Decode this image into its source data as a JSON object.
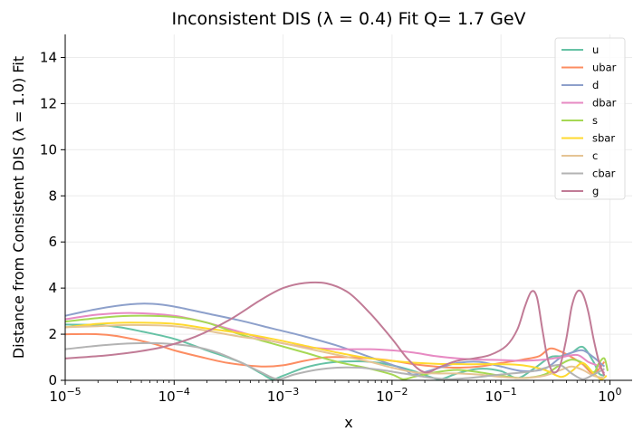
{
  "chart_data": {
    "type": "line",
    "title": "Inconsistent DIS (λ = 0.4) Fit Q= 1.7 GeV",
    "xlabel": "x",
    "ylabel": "Distance from Consistent DIS (λ = 1.0) Fit",
    "xscale": "log",
    "xlim": [
      1e-05,
      1.6
    ],
    "ylim": [
      0,
      15
    ],
    "grid": true,
    "legend_position": "top-right",
    "x_tick_values": [
      1e-05,
      0.0001,
      0.001,
      0.01,
      0.1,
      1
    ],
    "x_tick_labels": [
      {
        "base": "10",
        "exp": "−5"
      },
      {
        "base": "10",
        "exp": "−4"
      },
      {
        "base": "10",
        "exp": "−3"
      },
      {
        "base": "10",
        "exp": "−2"
      },
      {
        "base": "10",
        "exp": "−1"
      },
      {
        "base": "10",
        "exp": "0"
      }
    ],
    "y_tick_values": [
      0,
      2,
      4,
      6,
      8,
      10,
      12,
      14
    ],
    "y_tick_labels": [
      "0",
      "2",
      "4",
      "6",
      "8",
      "10",
      "12",
      "14"
    ],
    "series": [
      {
        "name": "u",
        "color": "#66c2a5",
        "points": [
          [
            -5,
            2.42
          ],
          [
            -4.7,
            2.4
          ],
          [
            -4.5,
            2.3
          ],
          [
            -4.3,
            2.12
          ],
          [
            -4,
            1.8
          ],
          [
            -3.7,
            1.3
          ],
          [
            -3.4,
            0.8
          ],
          [
            -3.2,
            0.3
          ],
          [
            -3.1,
            0.05
          ],
          [
            -3,
            0.2
          ],
          [
            -2.8,
            0.55
          ],
          [
            -2.6,
            0.75
          ],
          [
            -2.4,
            0.82
          ],
          [
            -2.2,
            0.8
          ],
          [
            -2,
            0.65
          ],
          [
            -1.8,
            0.4
          ],
          [
            -1.65,
            0.15
          ],
          [
            -1.55,
            0.05
          ],
          [
            -1.4,
            0.3
          ],
          [
            -1.2,
            0.5
          ],
          [
            -1,
            0.4
          ],
          [
            -0.85,
            0.1
          ],
          [
            -0.7,
            0.5
          ],
          [
            -0.55,
            1.0
          ],
          [
            -0.45,
            1.05
          ],
          [
            -0.35,
            1.2
          ],
          [
            -0.25,
            1.45
          ],
          [
            -0.15,
            0.8
          ],
          [
            -0.1,
            0.3
          ],
          [
            -0.05,
            0.2
          ]
        ]
      },
      {
        "name": "ubar",
        "color": "#fc8d62",
        "points": [
          [
            -5,
            2.0
          ],
          [
            -4.7,
            2.0
          ],
          [
            -4.5,
            1.9
          ],
          [
            -4.2,
            1.6
          ],
          [
            -4,
            1.3
          ],
          [
            -3.7,
            0.95
          ],
          [
            -3.5,
            0.75
          ],
          [
            -3.2,
            0.6
          ],
          [
            -3,
            0.65
          ],
          [
            -2.8,
            0.85
          ],
          [
            -2.6,
            1.0
          ],
          [
            -2.4,
            1.0
          ],
          [
            -2.2,
            0.95
          ],
          [
            -2,
            0.85
          ],
          [
            -1.8,
            0.7
          ],
          [
            -1.6,
            0.6
          ],
          [
            -1.4,
            0.55
          ],
          [
            -1.2,
            0.6
          ],
          [
            -1,
            0.75
          ],
          [
            -0.8,
            0.9
          ],
          [
            -0.65,
            1.05
          ],
          [
            -0.55,
            1.38
          ],
          [
            -0.45,
            1.25
          ],
          [
            -0.35,
            1.0
          ],
          [
            -0.25,
            0.7
          ],
          [
            -0.15,
            0.3
          ],
          [
            -0.05,
            0.8
          ]
        ]
      },
      {
        "name": "d",
        "color": "#8da0cb",
        "points": [
          [
            -5,
            2.8
          ],
          [
            -4.7,
            3.1
          ],
          [
            -4.4,
            3.3
          ],
          [
            -4.2,
            3.32
          ],
          [
            -4,
            3.2
          ],
          [
            -3.7,
            2.9
          ],
          [
            -3.4,
            2.6
          ],
          [
            -3.1,
            2.25
          ],
          [
            -2.8,
            1.9
          ],
          [
            -2.5,
            1.5
          ],
          [
            -2.2,
            1.0
          ],
          [
            -1.9,
            0.5
          ],
          [
            -1.8,
            0.25
          ],
          [
            -1.6,
            0.5
          ],
          [
            -1.4,
            0.75
          ],
          [
            -1.2,
            0.8
          ],
          [
            -1,
            0.6
          ],
          [
            -0.8,
            0.4
          ],
          [
            -0.6,
            0.5
          ],
          [
            -0.45,
            1.0
          ],
          [
            -0.35,
            1.2
          ],
          [
            -0.25,
            1.3
          ],
          [
            -0.15,
            1.0
          ],
          [
            -0.1,
            0.8
          ],
          [
            -0.05,
            0.6
          ]
        ]
      },
      {
        "name": "dbar",
        "color": "#e78ac3",
        "points": [
          [
            -5,
            2.65
          ],
          [
            -4.7,
            2.85
          ],
          [
            -4.4,
            2.92
          ],
          [
            -4,
            2.8
          ],
          [
            -3.7,
            2.5
          ],
          [
            -3.4,
            2.1
          ],
          [
            -3.1,
            1.7
          ],
          [
            -2.8,
            1.45
          ],
          [
            -2.5,
            1.35
          ],
          [
            -2.2,
            1.35
          ],
          [
            -2,
            1.3
          ],
          [
            -1.8,
            1.2
          ],
          [
            -1.6,
            1.05
          ],
          [
            -1.4,
            0.95
          ],
          [
            -1.2,
            0.9
          ],
          [
            -1,
            0.88
          ],
          [
            -0.8,
            0.85
          ],
          [
            -0.6,
            0.9
          ],
          [
            -0.45,
            1.0
          ],
          [
            -0.3,
            1.1
          ],
          [
            -0.2,
            0.8
          ],
          [
            -0.1,
            0.6
          ],
          [
            -0.05,
            0.3
          ]
        ]
      },
      {
        "name": "s",
        "color": "#a6d854",
        "points": [
          [
            -5,
            2.55
          ],
          [
            -4.7,
            2.7
          ],
          [
            -4.4,
            2.8
          ],
          [
            -4,
            2.75
          ],
          [
            -3.7,
            2.5
          ],
          [
            -3.4,
            2.0
          ],
          [
            -3.1,
            1.6
          ],
          [
            -2.8,
            1.2
          ],
          [
            -2.5,
            0.8
          ],
          [
            -2.2,
            0.5
          ],
          [
            -2,
            0.25
          ],
          [
            -1.9,
            0.05
          ],
          [
            -1.8,
            0.15
          ],
          [
            -1.6,
            0.35
          ],
          [
            -1.4,
            0.45
          ],
          [
            -1.2,
            0.35
          ],
          [
            -1,
            0.2
          ],
          [
            -0.8,
            0.1
          ],
          [
            -0.6,
            0.25
          ],
          [
            -0.45,
            0.7
          ],
          [
            -0.35,
            0.9
          ],
          [
            -0.25,
            0.75
          ],
          [
            -0.15,
            0.35
          ],
          [
            -0.1,
            0.75
          ],
          [
            -0.05,
            0.95
          ],
          [
            -0.02,
            0.4
          ]
        ]
      },
      {
        "name": "sbar",
        "color": "#ffd92f",
        "points": [
          [
            -5,
            2.3
          ],
          [
            -4.7,
            2.45
          ],
          [
            -4.4,
            2.5
          ],
          [
            -4,
            2.45
          ],
          [
            -3.7,
            2.25
          ],
          [
            -3.4,
            2.05
          ],
          [
            -3.1,
            1.8
          ],
          [
            -2.8,
            1.5
          ],
          [
            -2.5,
            1.2
          ],
          [
            -2.2,
            0.95
          ],
          [
            -1.9,
            0.8
          ],
          [
            -1.6,
            0.72
          ],
          [
            -1.3,
            0.7
          ],
          [
            -1.0,
            0.7
          ],
          [
            -0.8,
            0.65
          ],
          [
            -0.6,
            0.45
          ],
          [
            -0.45,
            0.15
          ],
          [
            -0.35,
            0.4
          ],
          [
            -0.25,
            0.75
          ],
          [
            -0.15,
            0.3
          ],
          [
            -0.08,
            0.05
          ],
          [
            -0.03,
            0.2
          ]
        ]
      },
      {
        "name": "c",
        "color": "#e5c494",
        "points": [
          [
            -5,
            2.3
          ],
          [
            -4.7,
            2.35
          ],
          [
            -4.4,
            2.4
          ],
          [
            -4,
            2.35
          ],
          [
            -3.7,
            2.15
          ],
          [
            -3.4,
            1.9
          ],
          [
            -3.1,
            1.7
          ],
          [
            -2.8,
            1.4
          ],
          [
            -2.5,
            1.1
          ],
          [
            -2.2,
            0.8
          ],
          [
            -2,
            0.55
          ],
          [
            -1.8,
            0.35
          ],
          [
            -1.6,
            0.3
          ],
          [
            -1.4,
            0.3
          ],
          [
            -1.2,
            0.25
          ],
          [
            -1,
            0.15
          ],
          [
            -0.8,
            0.1
          ],
          [
            -0.6,
            0.2
          ],
          [
            -0.45,
            0.45
          ],
          [
            -0.35,
            0.6
          ],
          [
            -0.25,
            0.45
          ],
          [
            -0.15,
            0.2
          ],
          [
            -0.05,
            0.1
          ]
        ]
      },
      {
        "name": "cbar",
        "color": "#b3b3b3",
        "points": [
          [
            -5,
            1.35
          ],
          [
            -4.7,
            1.5
          ],
          [
            -4.4,
            1.6
          ],
          [
            -4.1,
            1.6
          ],
          [
            -3.8,
            1.45
          ],
          [
            -3.6,
            1.2
          ],
          [
            -3.4,
            0.8
          ],
          [
            -3.2,
            0.35
          ],
          [
            -3.05,
            0.05
          ],
          [
            -2.9,
            0.25
          ],
          [
            -2.7,
            0.45
          ],
          [
            -2.5,
            0.55
          ],
          [
            -2.3,
            0.55
          ],
          [
            -2.1,
            0.45
          ],
          [
            -1.9,
            0.3
          ],
          [
            -1.7,
            0.15
          ],
          [
            -1.5,
            0.05
          ],
          [
            -1.3,
            0.1
          ],
          [
            -1.1,
            0.2
          ],
          [
            -0.9,
            0.3
          ],
          [
            -0.7,
            0.4
          ],
          [
            -0.55,
            0.6
          ],
          [
            -0.45,
            0.65
          ],
          [
            -0.35,
            0.3
          ],
          [
            -0.25,
            0.05
          ],
          [
            -0.15,
            0.25
          ],
          [
            -0.05,
            0.5
          ]
        ]
      },
      {
        "name": "g",
        "color": "#c17b96",
        "points": [
          [
            -5,
            0.95
          ],
          [
            -4.7,
            1.05
          ],
          [
            -4.4,
            1.2
          ],
          [
            -4.1,
            1.45
          ],
          [
            -3.8,
            1.9
          ],
          [
            -3.5,
            2.6
          ],
          [
            -3.2,
            3.5
          ],
          [
            -3.0,
            4.0
          ],
          [
            -2.8,
            4.22
          ],
          [
            -2.6,
            4.2
          ],
          [
            -2.4,
            3.8
          ],
          [
            -2.2,
            2.9
          ],
          [
            -2.0,
            1.8
          ],
          [
            -1.85,
            0.9
          ],
          [
            -1.7,
            0.35
          ],
          [
            -1.55,
            0.6
          ],
          [
            -1.4,
            0.85
          ],
          [
            -1.25,
            0.95
          ],
          [
            -1.1,
            1.1
          ],
          [
            -0.95,
            1.5
          ],
          [
            -0.85,
            2.2
          ],
          [
            -0.78,
            3.2
          ],
          [
            -0.72,
            3.85
          ],
          [
            -0.67,
            3.6
          ],
          [
            -0.62,
            2.2
          ],
          [
            -0.57,
            0.9
          ],
          [
            -0.52,
            0.35
          ],
          [
            -0.46,
            0.6
          ],
          [
            -0.4,
            1.8
          ],
          [
            -0.35,
            3.2
          ],
          [
            -0.3,
            3.85
          ],
          [
            -0.25,
            3.75
          ],
          [
            -0.2,
            3.0
          ],
          [
            -0.15,
            1.8
          ],
          [
            -0.1,
            0.8
          ],
          [
            -0.05,
            0.2
          ]
        ]
      }
    ]
  }
}
